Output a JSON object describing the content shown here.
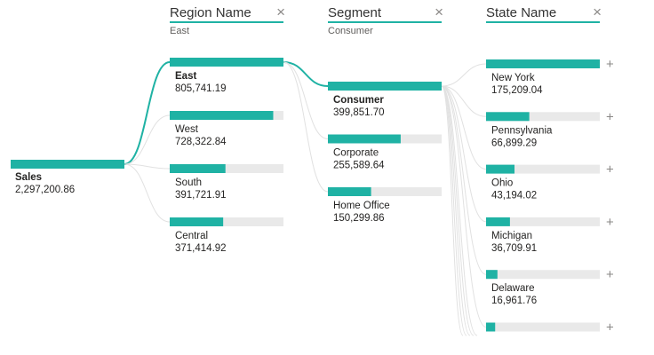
{
  "colors": {
    "accent": "#1fb2a4",
    "track": "#e9e9e9",
    "connector": "#e1e1e1",
    "header_underline": "#1fb2a4",
    "text": "#252423",
    "muted": "#605e5c"
  },
  "columns": [
    {
      "title": "Region Name",
      "filter": "East",
      "close_icon": "×"
    },
    {
      "title": "Segment",
      "filter": "Consumer",
      "close_icon": "×"
    },
    {
      "title": "State Name",
      "filter": "",
      "close_icon": "×"
    }
  ],
  "expand_icon": "+",
  "chart_data": {
    "type": "decomposition-tree",
    "root": {
      "label": "Sales",
      "value_text": "2,297,200.86",
      "value": 2297200.86
    },
    "levels": [
      {
        "column": "Region Name",
        "selected": "East",
        "nodes": [
          {
            "label": "East",
            "value_text": "805,741.19",
            "value": 805741.19,
            "fill": 1.0
          },
          {
            "label": "West",
            "value_text": "728,322.84",
            "value": 728322.84,
            "fill": 0.91
          },
          {
            "label": "South",
            "value_text": "391,721.91",
            "value": 391721.91,
            "fill": 0.49
          },
          {
            "label": "Central",
            "value_text": "371,414.92",
            "value": 371414.92,
            "fill": 0.47
          }
        ]
      },
      {
        "column": "Segment",
        "selected": "Consumer",
        "nodes": [
          {
            "label": "Consumer",
            "value_text": "399,851.70",
            "value": 399851.7,
            "fill": 1.0
          },
          {
            "label": "Corporate",
            "value_text": "255,589.64",
            "value": 255589.64,
            "fill": 0.64
          },
          {
            "label": "Home Office",
            "value_text": "150,299.86",
            "value": 150299.86,
            "fill": 0.38
          }
        ]
      },
      {
        "column": "State Name",
        "selected": "",
        "nodes": [
          {
            "label": "New York",
            "value_text": "175,209.04",
            "value": 175209.04,
            "fill": 1.0
          },
          {
            "label": "Pennsylvania",
            "value_text": "66,899.29",
            "value": 66899.29,
            "fill": 0.38
          },
          {
            "label": "Ohio",
            "value_text": "43,194.02",
            "value": 43194.02,
            "fill": 0.25
          },
          {
            "label": "Michigan",
            "value_text": "36,709.91",
            "value": 36709.91,
            "fill": 0.21
          },
          {
            "label": "Delaware",
            "value_text": "16,961.76",
            "value": 16961.76,
            "fill": 0.1
          },
          {
            "label": "",
            "value_text": "",
            "fill": 0.08
          }
        ]
      }
    ]
  }
}
